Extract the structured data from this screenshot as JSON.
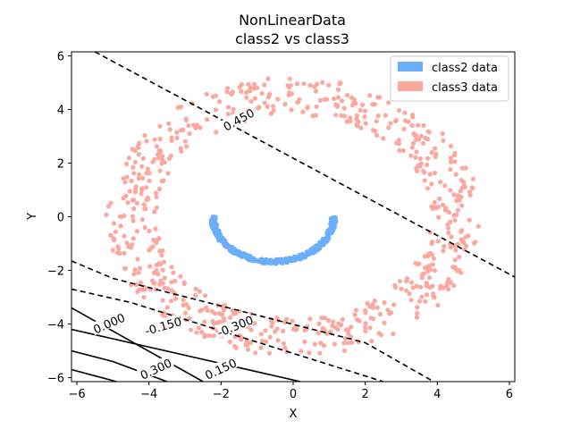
{
  "chart_data": {
    "type": "scatter",
    "title": [
      "NonLinearData",
      "class2 vs  class3"
    ],
    "xlabel": "X",
    "ylabel": "Y",
    "xlim": [
      -6.15,
      6.15
    ],
    "ylim": [
      -6.15,
      6.15
    ],
    "xticks": [
      -6,
      -4,
      -2,
      0,
      2,
      4,
      6
    ],
    "yticks": [
      -6,
      -4,
      -2,
      0,
      2,
      4,
      6
    ],
    "grid": false,
    "legend": {
      "placement": "top-right",
      "entries": [
        {
          "label": "class2 data",
          "color": "#6aaefc"
        },
        {
          "label": "class3 data",
          "color": "#fba89f"
        }
      ]
    },
    "series": [
      {
        "name": "class2 data",
        "color": "#6aaefc",
        "shape": "arc",
        "center": [
          -0.55,
          0.0
        ],
        "radius": [
          1.6,
          1.75
        ],
        "angle_range_deg": [
          180,
          360
        ],
        "count": 400
      },
      {
        "name": "class3 data",
        "color": "#fba89f",
        "shape": "ring",
        "center": [
          0.0,
          0.0
        ],
        "radius": [
          3.8,
          5.2
        ],
        "count": 700
      }
    ],
    "decision_lines": [
      {
        "label": "0.450",
        "style": "dashed",
        "points": [
          [
            -5.5,
            6.15
          ],
          [
            6.15,
            -2.25
          ]
        ],
        "label_at": [
          -1.5,
          3.6
        ],
        "label_angle": -29
      },
      {
        "label": "-0.150",
        "style": "dashed",
        "points": [
          [
            -6.15,
            -1.65
          ],
          [
            -5.0,
            -2.3
          ],
          [
            2.0,
            -4.7
          ],
          [
            3.9,
            -6.15
          ]
        ],
        "label_at": [
          -3.6,
          -4.1
        ],
        "label_angle": -16
      },
      {
        "label": "-0.300",
        "style": "dashed",
        "points": [
          [
            -6.15,
            -2.7
          ],
          [
            -4.5,
            -3.2
          ],
          [
            2.5,
            -6.15
          ]
        ],
        "label_at": [
          -1.6,
          -4.1
        ],
        "label_angle": -22
      },
      {
        "label": "0.000",
        "style": "solid",
        "points": [
          [
            -6.15,
            -3.4
          ],
          [
            -2.5,
            -6.15
          ]
        ],
        "label_at": [
          -5.1,
          -4.0
        ],
        "label_angle": -24
      },
      {
        "label": "0.150",
        "style": "solid",
        "points": [
          [
            -6.15,
            -4.2
          ],
          [
            0.2,
            -6.15
          ]
        ],
        "label_at": [
          -2.0,
          -5.7
        ],
        "label_angle": -25
      },
      {
        "label": "0.300",
        "style": "solid",
        "points": [
          [
            -6.15,
            -5.0
          ],
          [
            -5.0,
            -5.4
          ],
          [
            -3.5,
            -6.15
          ]
        ],
        "label_at": [
          -3.8,
          -5.7
        ],
        "label_angle": -25
      },
      {
        "label": "",
        "style": "solid",
        "points": [
          [
            -6.15,
            -5.7
          ],
          [
            -4.9,
            -6.15
          ]
        ]
      }
    ]
  }
}
